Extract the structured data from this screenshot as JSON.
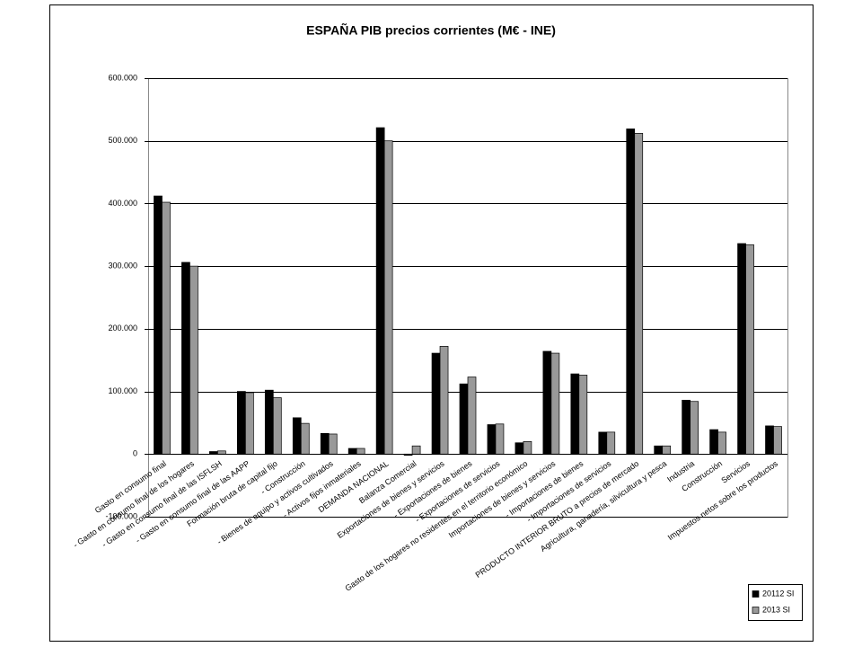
{
  "chart_data": {
    "type": "bar",
    "title": "ESPAÑA PIB precios corrientes (M€ - INE)",
    "categories": [
      "Gasto en consumo final",
      "- Gasto en consumo final de los hogares",
      "- Gasto en consumo final de las ISFLSH",
      "- Gasto en consumo final de las AAPP",
      "Formación bruta de capital fijo",
      "- Construcción",
      "- Bienes de equipo y activos cultivados",
      "- Activos fijos inmateriales",
      "DEMANDA NACIONAL",
      "Balanza Comercial",
      "Exportaciones de bienes y servicios",
      "- Exportaciones de bienes",
      "- Exportaciones de servicios",
      "Gasto de los hogares no residentes en el territorio económico",
      "Importaciones de bienes y servicios",
      "- Importaciones de bienes",
      "- Importaciones de servicios",
      "PRODUCTO INTERIOR BRUTO a precios de mercado",
      "Agricultura, ganadería, silvicultura y pesca",
      "Industria",
      "Construcción",
      "Servicios",
      "Impuestos netos sobre los productos"
    ],
    "series": [
      {
        "name": "20112 SI",
        "color": "#000000",
        "values": [
          412000,
          306000,
          4000,
          100000,
          102000,
          58000,
          33000,
          9000,
          521000,
          -2000,
          161000,
          112000,
          47000,
          18000,
          164000,
          128000,
          35000,
          519000,
          13000,
          86000,
          39000,
          336000,
          45000
        ]
      },
      {
        "name": "2013 SI",
        "color": "#999999",
        "values": [
          402000,
          300000,
          5000,
          98000,
          90000,
          49000,
          32000,
          9000,
          500000,
          13000,
          172000,
          123000,
          48000,
          20000,
          161000,
          126000,
          35000,
          512000,
          13000,
          84000,
          35000,
          334000,
          44000
        ]
      }
    ],
    "ylim": [
      -100000,
      600000
    ],
    "yticks": [
      {
        "value": -100000,
        "label": "-100.000"
      },
      {
        "value": 0,
        "label": "0"
      },
      {
        "value": 100000,
        "label": "100.000"
      },
      {
        "value": 200000,
        "label": "200.000"
      },
      {
        "value": 300000,
        "label": "300.000"
      },
      {
        "value": 400000,
        "label": "400.000"
      },
      {
        "value": 500000,
        "label": "500.000"
      },
      {
        "value": 600000,
        "label": "600.000"
      }
    ],
    "grid": true,
    "legend": "bottom-right"
  }
}
